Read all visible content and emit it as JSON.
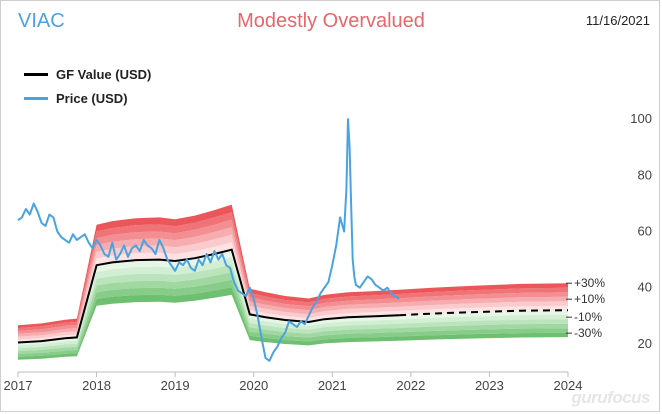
{
  "header": {
    "ticker": "VIAC",
    "valuation": "Modestly Overvalued",
    "date": "11/16/2021"
  },
  "logo": "gurufocus",
  "chart_data": {
    "type": "line",
    "xlim": [
      2017,
      2024
    ],
    "ylim": [
      10,
      105
    ],
    "x_ticks": [
      2017,
      2018,
      2019,
      2020,
      2021,
      2022,
      2023,
      2024
    ],
    "x_tick_labels": [
      "2017",
      "2018",
      "2019",
      "2020",
      "2021",
      "2022",
      "2023",
      "2024"
    ],
    "y_ticks": [
      20,
      40,
      60,
      80,
      100
    ],
    "y_tick_labels": [
      "20",
      "40",
      "60",
      "80",
      "100"
    ],
    "band_labels": [
      "+30%",
      "+10%",
      "-10%",
      "-30%"
    ],
    "band_label_positions": [
      1.3,
      1.1,
      0.9,
      0.7
    ],
    "band_colors": {
      "upper": [
        "#fde3e4",
        "#fbcacc",
        "#f7acaf",
        "#f38f92",
        "#ef7377",
        "#ea5659"
      ],
      "lower": [
        "#e8f6e8",
        "#d2eed3",
        "#bae4bb",
        "#a1d8a2",
        "#88cc8a",
        "#6fbf71"
      ]
    },
    "colors": {
      "gf_value": "#000000",
      "price": "#4aa3df"
    },
    "legend_placement": "top-left",
    "grid": false,
    "series": [
      {
        "name": "GF Value (USD)",
        "style": "solid",
        "x": [
          2017.0,
          2017.3,
          2017.6,
          2017.75,
          2018.0,
          2018.2,
          2018.5,
          2018.8,
          2019.0,
          2019.25,
          2019.5,
          2019.72,
          2019.95,
          2020.15,
          2020.4,
          2020.7,
          2020.9,
          2021.2,
          2021.5,
          2021.85
        ],
        "values": [
          20.5,
          21.0,
          22.0,
          22.3,
          48.0,
          49.0,
          49.8,
          50.0,
          49.5,
          50.5,
          52.0,
          53.5,
          30.5,
          29.5,
          28.5,
          27.8,
          28.8,
          29.5,
          29.8,
          30.2
        ]
      },
      {
        "name": "",
        "style": "dashed",
        "x": [
          2021.85,
          2022.3,
          2022.8,
          2023.4,
          2024.0
        ],
        "values": [
          30.2,
          30.8,
          31.3,
          31.8,
          32.0
        ]
      },
      {
        "name": "Price (USD)",
        "style": "solid",
        "x": [
          2017.0,
          2017.05,
          2017.1,
          2017.15,
          2017.2,
          2017.25,
          2017.3,
          2017.35,
          2017.4,
          2017.45,
          2017.5,
          2017.55,
          2017.6,
          2017.65,
          2017.7,
          2017.75,
          2017.8,
          2017.85,
          2017.9,
          2017.95,
          2018.0,
          2018.05,
          2018.1,
          2018.15,
          2018.2,
          2018.25,
          2018.3,
          2018.35,
          2018.4,
          2018.45,
          2018.5,
          2018.55,
          2018.6,
          2018.65,
          2018.7,
          2018.75,
          2018.8,
          2018.85,
          2018.9,
          2018.95,
          2019.0,
          2019.05,
          2019.1,
          2019.15,
          2019.2,
          2019.25,
          2019.3,
          2019.35,
          2019.4,
          2019.45,
          2019.5,
          2019.55,
          2019.6,
          2019.65,
          2019.7,
          2019.75,
          2019.8,
          2019.85,
          2019.9,
          2019.95,
          2020.0,
          2020.05,
          2020.1,
          2020.15,
          2020.2,
          2020.25,
          2020.3,
          2020.35,
          2020.4,
          2020.45,
          2020.5,
          2020.55,
          2020.6,
          2020.65,
          2020.7,
          2020.75,
          2020.8,
          2020.85,
          2020.9,
          2020.95,
          2021.0,
          2021.05,
          2021.1,
          2021.15,
          2021.18,
          2021.2,
          2021.22,
          2021.24,
          2021.26,
          2021.28,
          2021.3,
          2021.35,
          2021.4,
          2021.45,
          2021.5,
          2021.55,
          2021.6,
          2021.65,
          2021.7,
          2021.75,
          2021.8,
          2021.85
        ],
        "values": [
          64,
          65,
          68,
          66,
          70,
          67,
          63,
          62,
          66,
          65,
          60,
          58,
          57,
          56,
          59,
          57,
          58,
          59,
          56,
          54,
          57,
          55,
          52,
          51,
          56,
          50,
          52,
          55,
          51,
          54,
          55,
          53,
          57,
          55,
          54,
          52,
          57,
          54,
          50,
          48,
          46,
          49,
          48,
          50,
          47,
          46,
          50,
          48,
          52,
          49,
          53,
          50,
          52,
          48,
          47,
          42,
          39,
          38,
          37,
          40,
          36,
          30,
          22,
          15,
          14,
          17,
          19,
          22,
          24,
          28,
          27,
          26,
          28,
          27,
          30,
          33,
          35,
          38,
          40,
          42,
          48,
          55,
          65,
          60,
          75,
          100,
          90,
          70,
          50,
          44,
          41,
          40,
          42,
          44,
          43,
          41,
          40,
          39,
          40,
          38,
          37,
          36
        ]
      }
    ]
  }
}
